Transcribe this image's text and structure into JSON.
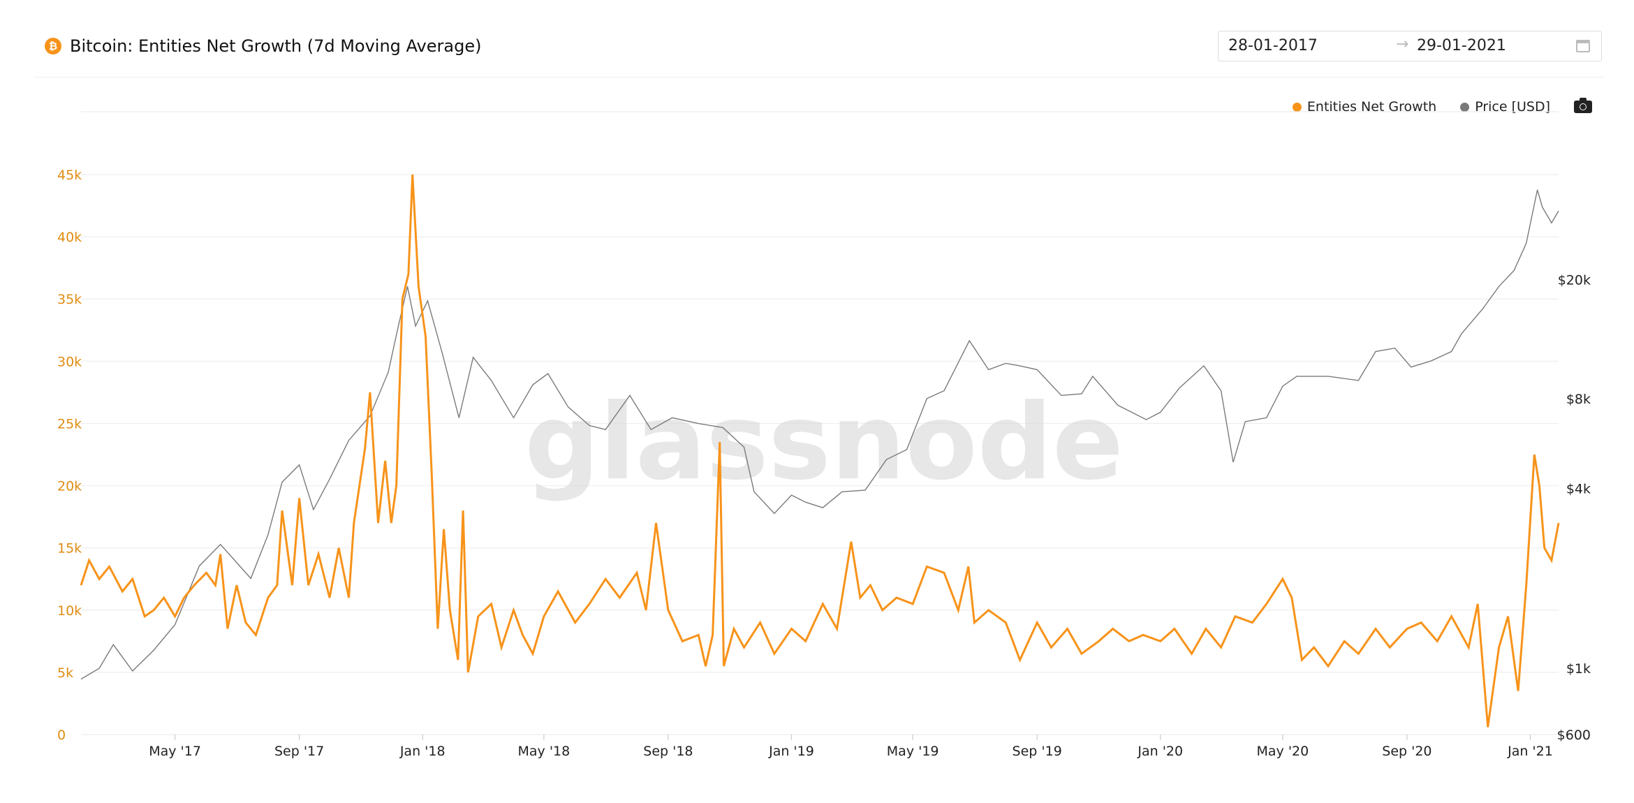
{
  "header": {
    "title": "Bitcoin: Entities Net Growth (7d Moving Average)",
    "icon": "bitcoin-icon",
    "date_start": "28-01-2017",
    "date_end": "29-01-2021",
    "arrow": "→"
  },
  "watermark": "glassnode",
  "colors": {
    "growth": "#f7931a",
    "price": "#7a7a7a",
    "grid": "#eeeeee"
  },
  "legend": [
    {
      "label": "Entities Net Growth",
      "color": "#f7931a"
    },
    {
      "label": "Price [USD]",
      "color": "#7a7a7a"
    }
  ],
  "chart_data": {
    "type": "line",
    "title": "Bitcoin: Entities Net Growth (7d Moving Average)",
    "x_range": [
      "2017-01-28",
      "2021-01-29"
    ],
    "x_ticks": [
      {
        "date": "2017-05-01",
        "label": "May '17"
      },
      {
        "date": "2017-09-01",
        "label": "Sep '17"
      },
      {
        "date": "2018-01-01",
        "label": "Jan '18"
      },
      {
        "date": "2018-05-01",
        "label": "May '18"
      },
      {
        "date": "2018-09-01",
        "label": "Sep '18"
      },
      {
        "date": "2019-01-01",
        "label": "Jan '19"
      },
      {
        "date": "2019-05-01",
        "label": "May '19"
      },
      {
        "date": "2019-09-01",
        "label": "Sep '19"
      },
      {
        "date": "2020-01-01",
        "label": "Jan '20"
      },
      {
        "date": "2020-05-01",
        "label": "May '20"
      },
      {
        "date": "2020-09-01",
        "label": "Sep '20"
      },
      {
        "date": "2021-01-01",
        "label": "Jan '21"
      }
    ],
    "y_left": {
      "min": 0,
      "max": 45000,
      "ticks": [
        {
          "value": 0,
          "label": "0"
        },
        {
          "value": 5000,
          "label": "5k"
        },
        {
          "value": 10000,
          "label": "10k"
        },
        {
          "value": 15000,
          "label": "15k"
        },
        {
          "value": 20000,
          "label": "20k"
        },
        {
          "value": 25000,
          "label": "25k"
        },
        {
          "value": 30000,
          "label": "30k"
        },
        {
          "value": 35000,
          "label": "35k"
        },
        {
          "value": 40000,
          "label": "40k"
        },
        {
          "value": 45000,
          "label": "45k"
        }
      ]
    },
    "y_right": {
      "scale": "log",
      "min": 600,
      "max": 45000,
      "ticks": [
        {
          "value": 600,
          "label": "$600"
        },
        {
          "value": 1000,
          "label": "$1k"
        },
        {
          "value": 4000,
          "label": "$4k"
        },
        {
          "value": 8000,
          "label": "$8k"
        },
        {
          "value": 20000,
          "label": "$20k"
        }
      ]
    },
    "grid": true,
    "legend_position": "top-right",
    "series": [
      {
        "name": "Entities Net Growth",
        "axis": "left",
        "color": "#f7931a",
        "points": [
          [
            "2017-01-28",
            12000
          ],
          [
            "2017-02-05",
            14000
          ],
          [
            "2017-02-15",
            12500
          ],
          [
            "2017-02-25",
            13500
          ],
          [
            "2017-03-10",
            11500
          ],
          [
            "2017-03-20",
            12500
          ],
          [
            "2017-04-01",
            9500
          ],
          [
            "2017-04-10",
            10000
          ],
          [
            "2017-04-20",
            11000
          ],
          [
            "2017-05-01",
            9500
          ],
          [
            "2017-05-10",
            11000
          ],
          [
            "2017-05-20",
            12000
          ],
          [
            "2017-06-01",
            13000
          ],
          [
            "2017-06-10",
            12000
          ],
          [
            "2017-06-15",
            14500
          ],
          [
            "2017-06-22",
            8500
          ],
          [
            "2017-07-01",
            12000
          ],
          [
            "2017-07-10",
            9000
          ],
          [
            "2017-07-20",
            8000
          ],
          [
            "2017-08-01",
            11000
          ],
          [
            "2017-08-10",
            12000
          ],
          [
            "2017-08-15",
            18000
          ],
          [
            "2017-08-25",
            12000
          ],
          [
            "2017-09-01",
            19000
          ],
          [
            "2017-09-10",
            12000
          ],
          [
            "2017-09-20",
            14500
          ],
          [
            "2017-10-01",
            11000
          ],
          [
            "2017-10-10",
            15000
          ],
          [
            "2017-10-20",
            11000
          ],
          [
            "2017-10-25",
            17000
          ],
          [
            "2017-11-05",
            23000
          ],
          [
            "2017-11-10",
            27500
          ],
          [
            "2017-11-18",
            17000
          ],
          [
            "2017-11-25",
            22000
          ],
          [
            "2017-12-01",
            17000
          ],
          [
            "2017-12-06",
            20000
          ],
          [
            "2017-12-12",
            35000
          ],
          [
            "2017-12-18",
            37000
          ],
          [
            "2017-12-22",
            45000
          ],
          [
            "2017-12-28",
            36000
          ],
          [
            "2018-01-04",
            32000
          ],
          [
            "2018-01-10",
            21000
          ],
          [
            "2018-01-16",
            8500
          ],
          [
            "2018-01-22",
            16500
          ],
          [
            "2018-01-28",
            10000
          ],
          [
            "2018-02-05",
            6000
          ],
          [
            "2018-02-10",
            18000
          ],
          [
            "2018-02-15",
            5000
          ],
          [
            "2018-02-25",
            9500
          ],
          [
            "2018-03-10",
            10500
          ],
          [
            "2018-03-20",
            7000
          ],
          [
            "2018-04-01",
            10000
          ],
          [
            "2018-04-10",
            8000
          ],
          [
            "2018-04-20",
            6500
          ],
          [
            "2018-05-01",
            9500
          ],
          [
            "2018-05-15",
            11500
          ],
          [
            "2018-06-01",
            9000
          ],
          [
            "2018-06-15",
            10500
          ],
          [
            "2018-07-01",
            12500
          ],
          [
            "2018-07-15",
            11000
          ],
          [
            "2018-08-01",
            13000
          ],
          [
            "2018-08-10",
            10000
          ],
          [
            "2018-08-20",
            17000
          ],
          [
            "2018-09-01",
            10000
          ],
          [
            "2018-09-15",
            7500
          ],
          [
            "2018-10-01",
            8000
          ],
          [
            "2018-10-08",
            5500
          ],
          [
            "2018-10-15",
            8000
          ],
          [
            "2018-10-22",
            23500
          ],
          [
            "2018-10-26",
            5500
          ],
          [
            "2018-11-05",
            8500
          ],
          [
            "2018-11-15",
            7000
          ],
          [
            "2018-12-01",
            9000
          ],
          [
            "2018-12-15",
            6500
          ],
          [
            "2019-01-01",
            8500
          ],
          [
            "2019-01-15",
            7500
          ],
          [
            "2019-02-01",
            10500
          ],
          [
            "2019-02-15",
            8500
          ],
          [
            "2019-03-01",
            15500
          ],
          [
            "2019-03-10",
            11000
          ],
          [
            "2019-03-20",
            12000
          ],
          [
            "2019-04-01",
            10000
          ],
          [
            "2019-04-15",
            11000
          ],
          [
            "2019-05-01",
            10500
          ],
          [
            "2019-05-15",
            13500
          ],
          [
            "2019-06-01",
            13000
          ],
          [
            "2019-06-15",
            10000
          ],
          [
            "2019-06-25",
            13500
          ],
          [
            "2019-07-01",
            9000
          ],
          [
            "2019-07-15",
            10000
          ],
          [
            "2019-08-01",
            9000
          ],
          [
            "2019-08-15",
            6000
          ],
          [
            "2019-09-01",
            9000
          ],
          [
            "2019-09-15",
            7000
          ],
          [
            "2019-10-01",
            8500
          ],
          [
            "2019-10-15",
            6500
          ],
          [
            "2019-11-01",
            7500
          ],
          [
            "2019-11-15",
            8500
          ],
          [
            "2019-12-01",
            7500
          ],
          [
            "2019-12-15",
            8000
          ],
          [
            "2020-01-01",
            7500
          ],
          [
            "2020-01-15",
            8500
          ],
          [
            "2020-02-01",
            6500
          ],
          [
            "2020-02-15",
            8500
          ],
          [
            "2020-03-01",
            7000
          ],
          [
            "2020-03-15",
            9500
          ],
          [
            "2020-04-01",
            9000
          ],
          [
            "2020-04-15",
            10500
          ],
          [
            "2020-05-01",
            12500
          ],
          [
            "2020-05-10",
            11000
          ],
          [
            "2020-05-20",
            6000
          ],
          [
            "2020-06-01",
            7000
          ],
          [
            "2020-06-15",
            5500
          ],
          [
            "2020-07-01",
            7500
          ],
          [
            "2020-07-15",
            6500
          ],
          [
            "2020-08-01",
            8500
          ],
          [
            "2020-08-15",
            7000
          ],
          [
            "2020-09-01",
            8500
          ],
          [
            "2020-09-15",
            9000
          ],
          [
            "2020-10-01",
            7500
          ],
          [
            "2020-10-15",
            9500
          ],
          [
            "2020-11-01",
            7000
          ],
          [
            "2020-11-10",
            10500
          ],
          [
            "2020-11-20",
            600
          ],
          [
            "2020-12-01",
            7000
          ],
          [
            "2020-12-10",
            9500
          ],
          [
            "2020-12-20",
            3500
          ],
          [
            "2020-12-28",
            12000
          ],
          [
            "2021-01-05",
            22500
          ],
          [
            "2021-01-10",
            20000
          ],
          [
            "2021-01-15",
            15000
          ],
          [
            "2021-01-22",
            14000
          ],
          [
            "2021-01-29",
            17000
          ]
        ]
      },
      {
        "name": "Price [USD]",
        "axis": "right",
        "color": "#7a7a7a",
        "points": [
          [
            "2017-01-28",
            920
          ],
          [
            "2017-02-15",
            1000
          ],
          [
            "2017-03-01",
            1200
          ],
          [
            "2017-03-20",
            980
          ],
          [
            "2017-04-10",
            1150
          ],
          [
            "2017-05-01",
            1400
          ],
          [
            "2017-05-25",
            2200
          ],
          [
            "2017-06-15",
            2600
          ],
          [
            "2017-07-15",
            2000
          ],
          [
            "2017-08-01",
            2800
          ],
          [
            "2017-08-15",
            4200
          ],
          [
            "2017-09-01",
            4800
          ],
          [
            "2017-09-15",
            3400
          ],
          [
            "2017-10-01",
            4300
          ],
          [
            "2017-10-20",
            5800
          ],
          [
            "2017-11-10",
            7000
          ],
          [
            "2017-11-28",
            9800
          ],
          [
            "2017-12-08",
            14000
          ],
          [
            "2017-12-17",
            19000
          ],
          [
            "2017-12-25",
            14000
          ],
          [
            "2018-01-06",
            17000
          ],
          [
            "2018-01-20",
            11500
          ],
          [
            "2018-02-06",
            6900
          ],
          [
            "2018-02-20",
            11000
          ],
          [
            "2018-03-10",
            9200
          ],
          [
            "2018-04-01",
            6900
          ],
          [
            "2018-04-20",
            8900
          ],
          [
            "2018-05-05",
            9700
          ],
          [
            "2018-05-25",
            7500
          ],
          [
            "2018-06-15",
            6500
          ],
          [
            "2018-07-01",
            6300
          ],
          [
            "2018-07-25",
            8200
          ],
          [
            "2018-08-15",
            6300
          ],
          [
            "2018-09-05",
            6900
          ],
          [
            "2018-10-01",
            6600
          ],
          [
            "2018-10-25",
            6400
          ],
          [
            "2018-11-15",
            5500
          ],
          [
            "2018-11-25",
            3900
          ],
          [
            "2018-12-15",
            3300
          ],
          [
            "2019-01-01",
            3800
          ],
          [
            "2019-01-15",
            3600
          ],
          [
            "2019-02-01",
            3450
          ],
          [
            "2019-02-20",
            3900
          ],
          [
            "2019-03-15",
            3950
          ],
          [
            "2019-04-05",
            5000
          ],
          [
            "2019-04-25",
            5400
          ],
          [
            "2019-05-15",
            8000
          ],
          [
            "2019-06-01",
            8500
          ],
          [
            "2019-06-26",
            12500
          ],
          [
            "2019-07-15",
            10000
          ],
          [
            "2019-08-01",
            10500
          ],
          [
            "2019-08-15",
            10300
          ],
          [
            "2019-09-01",
            10000
          ],
          [
            "2019-09-25",
            8200
          ],
          [
            "2019-10-15",
            8300
          ],
          [
            "2019-10-26",
            9500
          ],
          [
            "2019-11-20",
            7600
          ],
          [
            "2019-12-18",
            6800
          ],
          [
            "2020-01-01",
            7200
          ],
          [
            "2020-01-20",
            8700
          ],
          [
            "2020-02-13",
            10300
          ],
          [
            "2020-03-01",
            8500
          ],
          [
            "2020-03-13",
            4900
          ],
          [
            "2020-03-25",
            6700
          ],
          [
            "2020-04-15",
            6900
          ],
          [
            "2020-05-01",
            8800
          ],
          [
            "2020-05-15",
            9500
          ],
          [
            "2020-06-15",
            9500
          ],
          [
            "2020-07-15",
            9200
          ],
          [
            "2020-08-01",
            11500
          ],
          [
            "2020-08-20",
            11800
          ],
          [
            "2020-09-05",
            10200
          ],
          [
            "2020-09-25",
            10700
          ],
          [
            "2020-10-15",
            11500
          ],
          [
            "2020-10-25",
            13200
          ],
          [
            "2020-11-15",
            16000
          ],
          [
            "2020-12-01",
            19000
          ],
          [
            "2020-12-16",
            21500
          ],
          [
            "2020-12-28",
            26500
          ],
          [
            "2021-01-08",
            40000
          ],
          [
            "2021-01-13",
            35000
          ],
          [
            "2021-01-22",
            31000
          ],
          [
            "2021-01-29",
            34000
          ]
        ]
      }
    ]
  }
}
